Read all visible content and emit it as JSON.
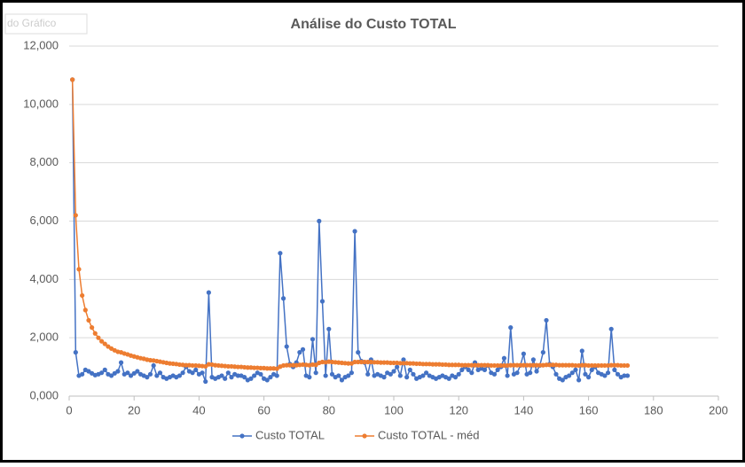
{
  "chart_data": {
    "type": "scatter-line",
    "title": "Análise do Custo TOTAL",
    "tooltip": "do Gráfico",
    "x": [
      1,
      2,
      3,
      4,
      5,
      6,
      7,
      8,
      9,
      10,
      11,
      12,
      13,
      14,
      15,
      16,
      17,
      18,
      19,
      20,
      21,
      22,
      23,
      24,
      25,
      26,
      27,
      28,
      29,
      30,
      31,
      32,
      33,
      34,
      35,
      36,
      37,
      38,
      39,
      40,
      41,
      42,
      43,
      44,
      45,
      46,
      47,
      48,
      49,
      50,
      51,
      52,
      53,
      54,
      55,
      56,
      57,
      58,
      59,
      60,
      61,
      62,
      63,
      64,
      65,
      66,
      67,
      68,
      69,
      70,
      71,
      72,
      73,
      74,
      75,
      76,
      77,
      78,
      79,
      80,
      81,
      82,
      83,
      84,
      85,
      86,
      87,
      88,
      89,
      90,
      91,
      92,
      93,
      94,
      95,
      96,
      97,
      98,
      99,
      100,
      101,
      102,
      103,
      104,
      105,
      106,
      107,
      108,
      109,
      110,
      111,
      112,
      113,
      114,
      115,
      116,
      117,
      118,
      119,
      120,
      121,
      122,
      123,
      124,
      125,
      126,
      127,
      128,
      129,
      130,
      131,
      132,
      133,
      134,
      135,
      136,
      137,
      138,
      139,
      140,
      141,
      142,
      143,
      144,
      145,
      146,
      147,
      148,
      149,
      150,
      151,
      152,
      153,
      154,
      155,
      156,
      157,
      158,
      159,
      160,
      161,
      162,
      163,
      164,
      165,
      166,
      167,
      168,
      169,
      170,
      171,
      172
    ],
    "series": [
      {
        "name": "Custo TOTAL",
        "color": "#4472c4",
        "values": [
          10850,
          1500,
          700,
          750,
          900,
          850,
          780,
          720,
          750,
          800,
          900,
          750,
          700,
          780,
          850,
          1150,
          750,
          800,
          700,
          780,
          850,
          750,
          700,
          650,
          750,
          1050,
          700,
          800,
          650,
          600,
          650,
          700,
          650,
          700,
          800,
          1000,
          850,
          800,
          900,
          750,
          800,
          500,
          3550,
          650,
          600,
          650,
          700,
          600,
          800,
          650,
          750,
          700,
          700,
          650,
          550,
          600,
          700,
          800,
          750,
          600,
          550,
          650,
          750,
          700,
          4900,
          3350,
          1700,
          1100,
          1000,
          1150,
          1500,
          1600,
          700,
          650,
          1950,
          800,
          6000,
          3250,
          700,
          2300,
          750,
          650,
          700,
          550,
          650,
          700,
          800,
          5650,
          1500,
          1200,
          1150,
          750,
          1250,
          700,
          750,
          700,
          650,
          800,
          750,
          850,
          1000,
          700,
          1250,
          650,
          900,
          750,
          600,
          650,
          700,
          800,
          700,
          650,
          600,
          650,
          700,
          650,
          600,
          700,
          650,
          750,
          900,
          1000,
          900,
          800,
          1150,
          900,
          950,
          900,
          1050,
          800,
          750,
          900,
          1000,
          1300,
          700,
          2350,
          750,
          800,
          1050,
          1450,
          750,
          800,
          1250,
          850,
          1050,
          1500,
          2600,
          1100,
          1000,
          750,
          600,
          550,
          650,
          700,
          800,
          900,
          550,
          1550,
          750,
          650,
          900,
          1000,
          800,
          750,
          700,
          800,
          2300,
          900,
          750,
          650,
          700,
          700
        ]
      },
      {
        "name": "Custo TOTAL - méd",
        "color": "#ed7d31",
        "values": [
          10850,
          6200,
          4350,
          3450,
          2950,
          2600,
          2350,
          2150,
          2000,
          1880,
          1790,
          1700,
          1630,
          1570,
          1520,
          1500,
          1460,
          1430,
          1390,
          1360,
          1330,
          1300,
          1280,
          1250,
          1230,
          1220,
          1200,
          1180,
          1160,
          1140,
          1120,
          1110,
          1100,
          1080,
          1070,
          1060,
          1060,
          1050,
          1050,
          1040,
          1030,
          1020,
          1090,
          1080,
          1060,
          1050,
          1040,
          1030,
          1020,
          1020,
          1010,
          1000,
          1000,
          990,
          980,
          980,
          970,
          970,
          960,
          960,
          950,
          950,
          950,
          940,
          1010,
          1050,
          1060,
          1060,
          1060,
          1060,
          1070,
          1080,
          1070,
          1060,
          1080,
          1070,
          1140,
          1170,
          1160,
          1180,
          1170,
          1160,
          1150,
          1140,
          1130,
          1120,
          1120,
          1170,
          1170,
          1170,
          1170,
          1170,
          1170,
          1160,
          1160,
          1150,
          1150,
          1150,
          1140,
          1140,
          1140,
          1130,
          1130,
          1130,
          1120,
          1120,
          1110,
          1110,
          1100,
          1100,
          1100,
          1090,
          1090,
          1090,
          1080,
          1080,
          1070,
          1070,
          1070,
          1070,
          1060,
          1060,
          1060,
          1060,
          1060,
          1060,
          1060,
          1060,
          1060,
          1050,
          1050,
          1050,
          1050,
          1050,
          1050,
          1060,
          1060,
          1060,
          1060,
          1060,
          1060,
          1060,
          1060,
          1060,
          1060,
          1060,
          1070,
          1070,
          1070,
          1070,
          1060,
          1060,
          1060,
          1060,
          1060,
          1050,
          1050,
          1060,
          1060,
          1050,
          1050,
          1050,
          1050,
          1050,
          1050,
          1050,
          1060,
          1060,
          1060,
          1050,
          1050,
          1050
        ]
      }
    ],
    "xlim": [
      0,
      200
    ],
    "xticks": [
      0,
      20,
      40,
      60,
      80,
      100,
      120,
      140,
      160,
      180,
      200
    ],
    "ylim": [
      0,
      12000
    ],
    "yticks": [
      {
        "value": 0,
        "label": "0,000"
      },
      {
        "value": 2000,
        "label": "2,000"
      },
      {
        "value": 4000,
        "label": "4,000"
      },
      {
        "value": 6000,
        "label": "6,000"
      },
      {
        "value": 8000,
        "label": "8,000"
      },
      {
        "value": 10000,
        "label": "10,000"
      },
      {
        "value": 12000,
        "label": "12,000"
      }
    ],
    "grid": true,
    "legend": "bottom"
  }
}
